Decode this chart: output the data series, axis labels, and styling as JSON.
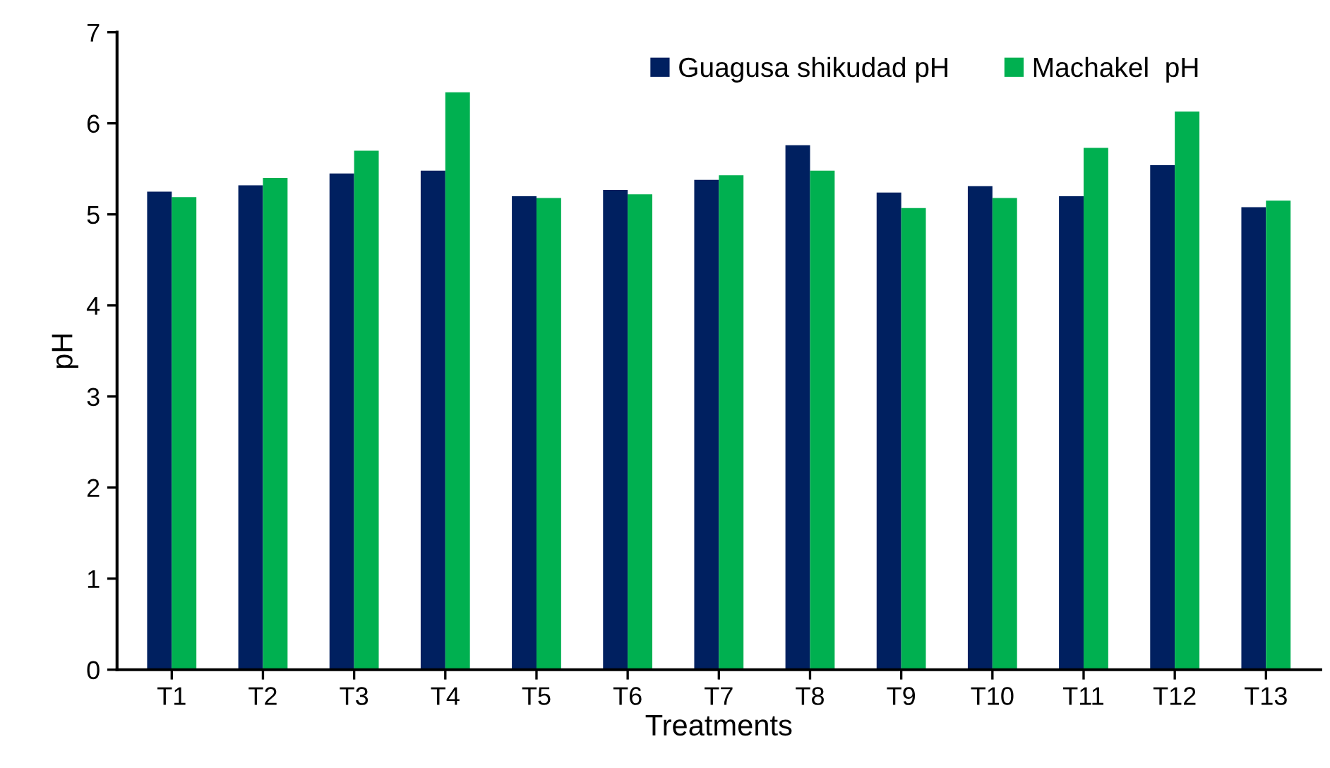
{
  "chart_data": {
    "type": "bar",
    "xlabel": "Treatments",
    "ylabel": "pH",
    "categories": [
      "T1",
      "T2",
      "T3",
      "T4",
      "T5",
      "T6",
      "T7",
      "T8",
      "T9",
      "T10",
      "T11",
      "T12",
      "T13"
    ],
    "series": [
      {
        "name": "Guagusa shikudad pH",
        "color": "#002060",
        "values": [
          5.25,
          5.32,
          5.45,
          5.48,
          5.2,
          5.27,
          5.38,
          5.76,
          5.24,
          5.31,
          5.2,
          5.54,
          5.08
        ]
      },
      {
        "name": "Machakel  pH",
        "color": "#00b050",
        "values": [
          5.19,
          5.4,
          5.7,
          6.34,
          5.18,
          5.22,
          5.43,
          5.48,
          5.07,
          5.18,
          5.73,
          6.13,
          5.15
        ]
      }
    ],
    "ylim": [
      0,
      7
    ],
    "yticks": [
      0,
      1,
      2,
      3,
      4,
      5,
      6,
      7
    ],
    "grid": false,
    "legend": "top right"
  }
}
